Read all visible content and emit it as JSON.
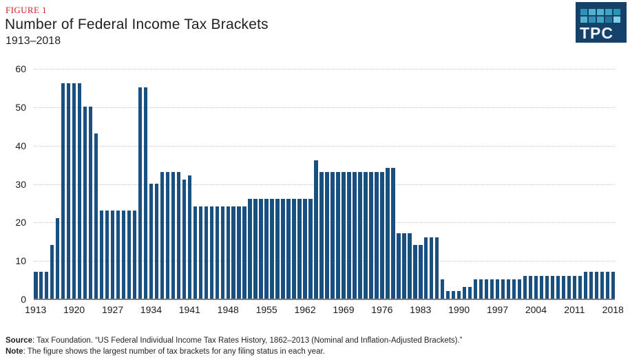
{
  "header": {
    "figure_label": "FIGURE 1",
    "title": "Number of Federal Income Tax Brackets",
    "subtitle": "1913–2018"
  },
  "logo": {
    "text": "TPC",
    "background": "#15426b",
    "square_rows": [
      [
        "#2e93b5",
        "#55b2cf",
        "#55b2cf",
        "#3fa3c2",
        "#2e93b5"
      ],
      [
        "#55b2cf",
        "#2e93b5",
        "#3fa3c2",
        "#21789c",
        "#7fd0e3"
      ]
    ]
  },
  "footer": {
    "source_label": "Source",
    "source_text": ": Tax Foundation. “US Federal Individual Income Tax Rates History, 1862–2013 (Nominal and Inflation-Adjusted Brackets).”",
    "note_label": "Note",
    "note_text": ": The figure shows the largest number of tax brackets for any filing status in each year."
  },
  "chart_data": {
    "type": "bar",
    "title": "Number of Federal Income Tax Brackets",
    "subtitle": "1913–2018",
    "xlabel": "",
    "ylabel": "",
    "ylim": [
      0,
      60
    ],
    "grid": "horizontal-dotted",
    "bar_color": "#1a5080",
    "y_ticks": [
      0,
      10,
      20,
      30,
      40,
      50,
      60
    ],
    "x_tick_years": [
      1913,
      1920,
      1927,
      1934,
      1941,
      1948,
      1955,
      1962,
      1969,
      1976,
      1983,
      1990,
      1997,
      2004,
      2011,
      2018
    ],
    "start_year": 1913,
    "end_year": 2018,
    "x": [
      1913,
      1914,
      1915,
      1916,
      1917,
      1918,
      1919,
      1920,
      1921,
      1922,
      1923,
      1924,
      1925,
      1926,
      1927,
      1928,
      1929,
      1930,
      1931,
      1932,
      1933,
      1934,
      1935,
      1936,
      1937,
      1938,
      1939,
      1940,
      1941,
      1942,
      1943,
      1944,
      1945,
      1946,
      1947,
      1948,
      1949,
      1950,
      1951,
      1952,
      1953,
      1954,
      1955,
      1956,
      1957,
      1958,
      1959,
      1960,
      1961,
      1962,
      1963,
      1964,
      1965,
      1966,
      1967,
      1968,
      1969,
      1970,
      1971,
      1972,
      1973,
      1974,
      1975,
      1976,
      1977,
      1978,
      1979,
      1980,
      1981,
      1982,
      1983,
      1984,
      1985,
      1986,
      1987,
      1988,
      1989,
      1990,
      1991,
      1992,
      1993,
      1994,
      1995,
      1996,
      1997,
      1998,
      1999,
      2000,
      2001,
      2002,
      2003,
      2004,
      2005,
      2006,
      2007,
      2008,
      2009,
      2010,
      2011,
      2012,
      2013,
      2014,
      2015,
      2016,
      2017,
      2018
    ],
    "values": [
      7,
      7,
      7,
      14,
      21,
      56,
      56,
      56,
      56,
      50,
      50,
      43,
      23,
      23,
      23,
      23,
      23,
      23,
      23,
      55,
      55,
      30,
      30,
      33,
      33,
      33,
      33,
      31,
      32,
      24,
      24,
      24,
      24,
      24,
      24,
      24,
      24,
      24,
      24,
      26,
      26,
      26,
      26,
      26,
      26,
      26,
      26,
      26,
      26,
      26,
      26,
      36,
      33,
      33,
      33,
      33,
      33,
      33,
      33,
      33,
      33,
      33,
      33,
      33,
      34,
      34,
      17,
      17,
      17,
      14,
      14,
      16,
      16,
      16,
      5,
      2,
      2,
      2,
      3,
      3,
      5,
      5,
      5,
      5,
      5,
      5,
      5,
      5,
      5,
      6,
      6,
      6,
      6,
      6,
      6,
      6,
      6,
      6,
      6,
      6,
      7,
      7,
      7,
      7,
      7,
      7
    ]
  }
}
